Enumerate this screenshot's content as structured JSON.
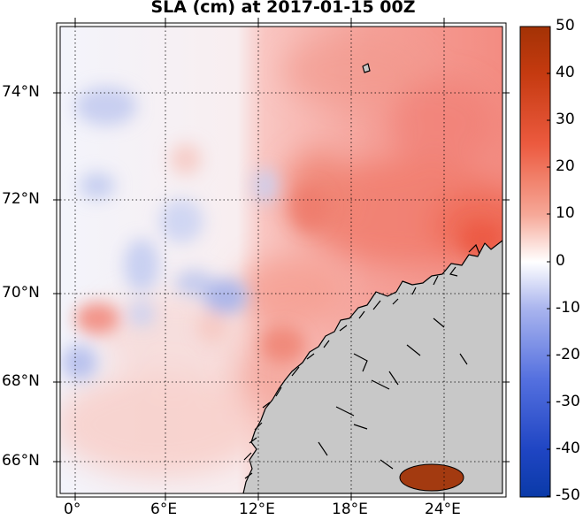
{
  "title": "SLA (cm) at 2017-01-15 00Z",
  "map": {
    "lat_ticks": [
      {
        "label": "74°N",
        "value": 74
      },
      {
        "label": "72°N",
        "value": 72
      },
      {
        "label": "70°N",
        "value": 70
      },
      {
        "label": "68°N",
        "value": 68
      },
      {
        "label": "66°N",
        "value": 66
      }
    ],
    "lon_ticks": [
      {
        "label": "0°",
        "value": 0
      },
      {
        "label": "6°E",
        "value": 6
      },
      {
        "label": "12°E",
        "value": 12
      },
      {
        "label": "18°E",
        "value": 18
      },
      {
        "label": "24°E",
        "value": 24
      }
    ],
    "land_color": "#c8c8c8",
    "grid": "dotted"
  },
  "colorbar": {
    "min": -50,
    "max": 50,
    "ticks": [
      "50",
      "40",
      "30",
      "20",
      "10",
      "0",
      "-10",
      "-20",
      "-30",
      "-40",
      "-50"
    ],
    "colors": {
      "low": "#0a3aa8",
      "mid": "#ffffff",
      "high": "#a33205"
    }
  }
}
